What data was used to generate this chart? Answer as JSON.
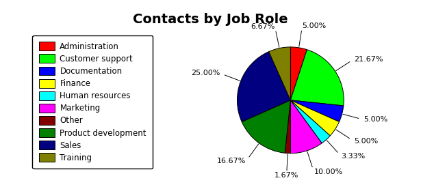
{
  "title": "Contacts by Job Role",
  "labels": [
    "Administration",
    "Customer support",
    "Documentation",
    "Finance",
    "Human resources",
    "Marketing",
    "Other",
    "Product development",
    "Sales",
    "Training"
  ],
  "percentages": [
    5.0,
    21.67,
    5.0,
    5.0,
    3.33,
    10.0,
    1.67,
    16.67,
    25.0,
    6.67
  ],
  "colors": [
    "#ff0000",
    "#00ff00",
    "#0000ff",
    "#ffff00",
    "#00ffff",
    "#ff00ff",
    "#800000",
    "#008000",
    "#000080",
    "#808000"
  ],
  "bg_color": "#ffffff",
  "title_fontsize": 14,
  "legend_fontsize": 8.5,
  "pct_fontsize": 8
}
